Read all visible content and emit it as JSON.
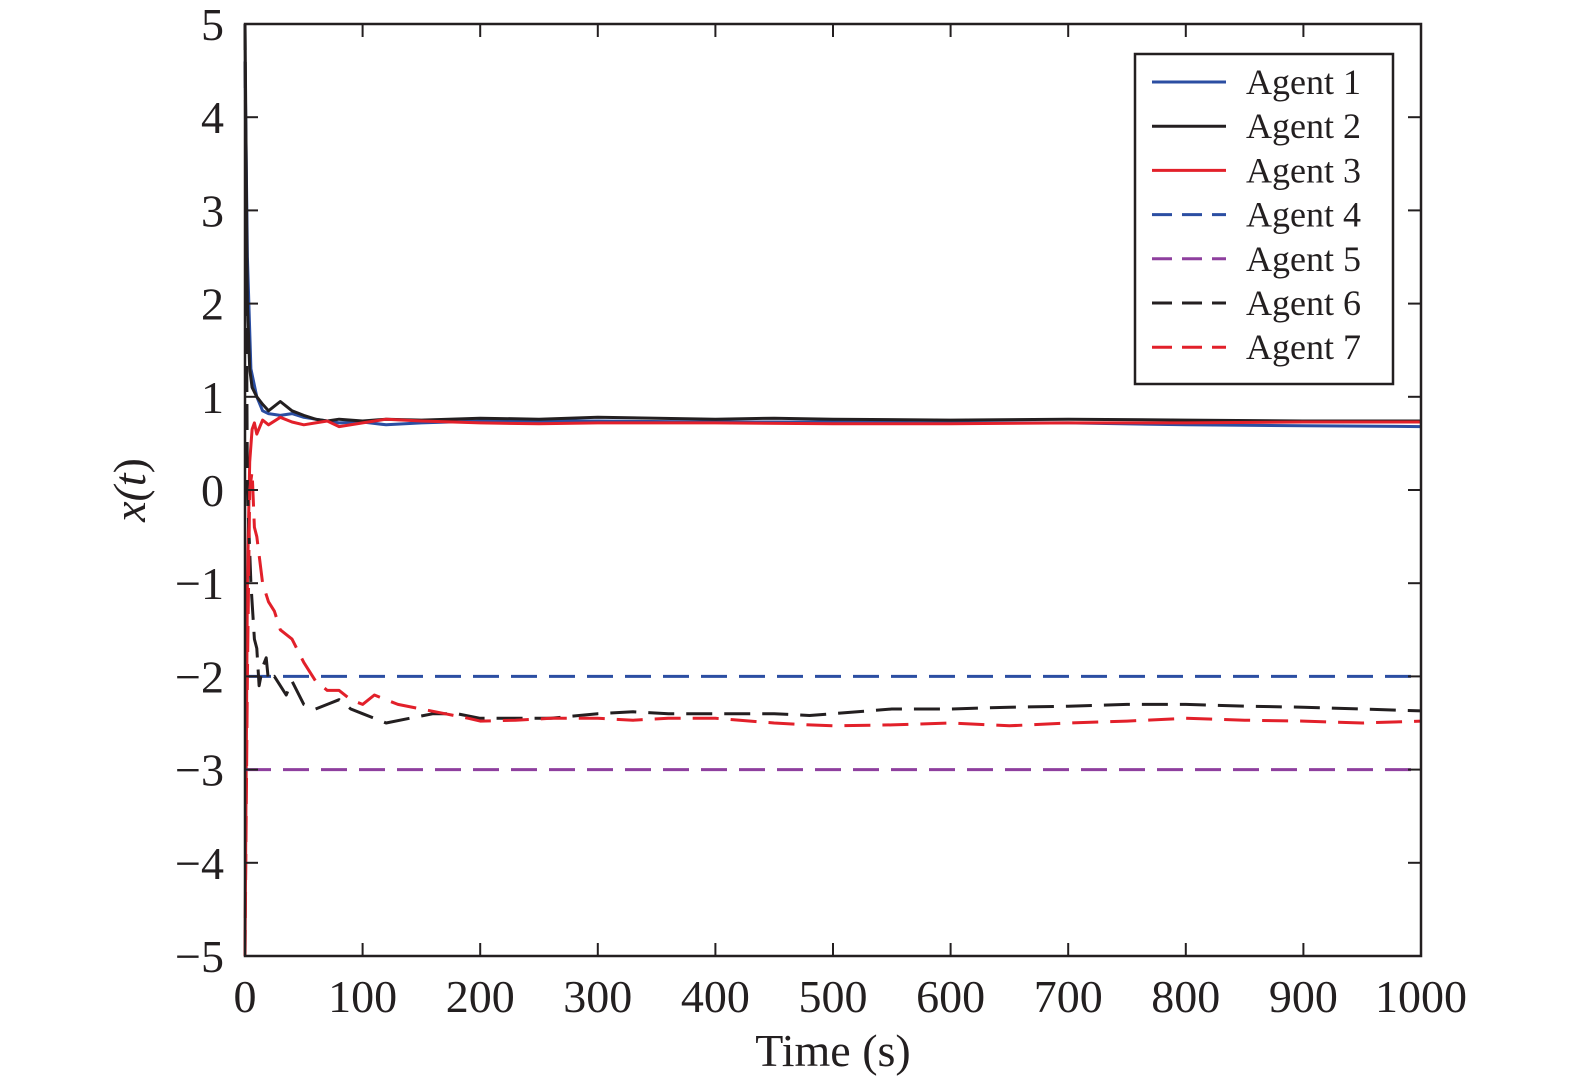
{
  "chart_data": {
    "type": "line",
    "title": "",
    "xlabel": "Time (s)",
    "ylabel_parts": [
      "x(",
      "t",
      ")"
    ],
    "xlim": [
      0,
      1000
    ],
    "ylim": [
      -5,
      5
    ],
    "xticks": [
      0,
      100,
      200,
      300,
      400,
      500,
      600,
      700,
      800,
      900,
      1000
    ],
    "yticks": [
      5,
      4,
      3,
      2,
      1,
      0,
      -1,
      -2,
      -3,
      -4,
      -5
    ],
    "ytick_labels": [
      "5",
      "4",
      "3",
      "2",
      "1",
      "0",
      "−1",
      "−2",
      "−3",
      "−4",
      "−5"
    ],
    "grid": false,
    "legend_position": "top-right",
    "series": [
      {
        "name": "Agent 1",
        "color": "#2b4ea2",
        "dash": "solid",
        "x": [
          0,
          2,
          5,
          10,
          15,
          20,
          30,
          40,
          50,
          60,
          70,
          80,
          100,
          120,
          150,
          200,
          250,
          300,
          400,
          500,
          600,
          700,
          800,
          900,
          1000
        ],
        "y": [
          4.6,
          2.5,
          1.3,
          1.0,
          0.85,
          0.82,
          0.8,
          0.82,
          0.78,
          0.76,
          0.74,
          0.72,
          0.73,
          0.7,
          0.72,
          0.74,
          0.74,
          0.74,
          0.73,
          0.73,
          0.72,
          0.72,
          0.7,
          0.69,
          0.68
        ]
      },
      {
        "name": "Agent 2",
        "color": "#231f20",
        "dash": "solid",
        "x": [
          0,
          2,
          4,
          6,
          10,
          15,
          20,
          30,
          40,
          50,
          60,
          70,
          80,
          100,
          120,
          150,
          200,
          250,
          300,
          350,
          400,
          450,
          500,
          600,
          700,
          800,
          900,
          1000
        ],
        "y": [
          5.0,
          2.0,
          1.3,
          1.1,
          1.0,
          0.92,
          0.85,
          0.95,
          0.85,
          0.8,
          0.76,
          0.74,
          0.76,
          0.74,
          0.76,
          0.75,
          0.77,
          0.76,
          0.78,
          0.77,
          0.76,
          0.77,
          0.76,
          0.75,
          0.76,
          0.75,
          0.74,
          0.74
        ]
      },
      {
        "name": "Agent 3",
        "color": "#e2202a",
        "dash": "solid",
        "x": [
          0,
          2,
          4,
          6,
          8,
          10,
          15,
          20,
          30,
          40,
          50,
          60,
          70,
          80,
          100,
          120,
          150,
          200,
          250,
          300,
          400,
          500,
          600,
          700,
          800,
          900,
          1000
        ],
        "y": [
          -5.0,
          -1.0,
          0.3,
          0.65,
          0.72,
          0.6,
          0.75,
          0.7,
          0.78,
          0.73,
          0.7,
          0.72,
          0.74,
          0.68,
          0.72,
          0.76,
          0.74,
          0.72,
          0.71,
          0.72,
          0.72,
          0.71,
          0.71,
          0.72,
          0.72,
          0.73,
          0.73
        ]
      },
      {
        "name": "Agent 4",
        "color": "#2b4ea2",
        "dash": "dashed",
        "x": [
          0,
          1000
        ],
        "y": [
          -2.0,
          -2.0
        ]
      },
      {
        "name": "Agent 5",
        "color": "#8e3f9e",
        "dash": "dashed",
        "x": [
          0,
          1000
        ],
        "y": [
          -3.0,
          -3.0
        ]
      },
      {
        "name": "Agent 6",
        "color": "#231f20",
        "dash": "dashed",
        "x": [
          0,
          2,
          5,
          8,
          10,
          12,
          15,
          18,
          20,
          25,
          30,
          35,
          40,
          50,
          60,
          70,
          80,
          90,
          100,
          110,
          120,
          140,
          160,
          180,
          200,
          230,
          260,
          300,
          330,
          360,
          400,
          450,
          480,
          500,
          550,
          600,
          650,
          700,
          750,
          800,
          850,
          900,
          950,
          1000
        ],
        "y": [
          5.0,
          0.0,
          -1.0,
          -1.6,
          -1.7,
          -2.1,
          -1.9,
          -1.8,
          -2.05,
          -2.0,
          -2.1,
          -2.2,
          -2.05,
          -2.3,
          -2.35,
          -2.3,
          -2.25,
          -2.35,
          -2.4,
          -2.45,
          -2.5,
          -2.45,
          -2.4,
          -2.4,
          -2.45,
          -2.45,
          -2.45,
          -2.4,
          -2.38,
          -2.4,
          -2.4,
          -2.4,
          -2.42,
          -2.4,
          -2.35,
          -2.35,
          -2.33,
          -2.32,
          -2.3,
          -2.3,
          -2.32,
          -2.33,
          -2.35,
          -2.37
        ]
      },
      {
        "name": "Agent 7",
        "color": "#e2202a",
        "dash": "dashed",
        "x": [
          0,
          2,
          4,
          6,
          8,
          10,
          15,
          20,
          25,
          30,
          40,
          50,
          60,
          70,
          80,
          90,
          100,
          110,
          120,
          130,
          150,
          170,
          190,
          200,
          230,
          260,
          300,
          330,
          360,
          400,
          450,
          480,
          500,
          550,
          600,
          650,
          700,
          750,
          800,
          850,
          900,
          950,
          1000
        ],
        "y": [
          -5.0,
          -2.0,
          0.0,
          0.2,
          -0.4,
          -0.5,
          -1.0,
          -1.2,
          -1.3,
          -1.5,
          -1.6,
          -1.85,
          -2.05,
          -2.15,
          -2.15,
          -2.25,
          -2.3,
          -2.2,
          -2.25,
          -2.3,
          -2.35,
          -2.4,
          -2.45,
          -2.48,
          -2.47,
          -2.45,
          -2.45,
          -2.47,
          -2.45,
          -2.45,
          -2.5,
          -2.52,
          -2.53,
          -2.52,
          -2.5,
          -2.53,
          -2.5,
          -2.48,
          -2.45,
          -2.47,
          -2.48,
          -2.5,
          -2.48
        ]
      }
    ]
  }
}
